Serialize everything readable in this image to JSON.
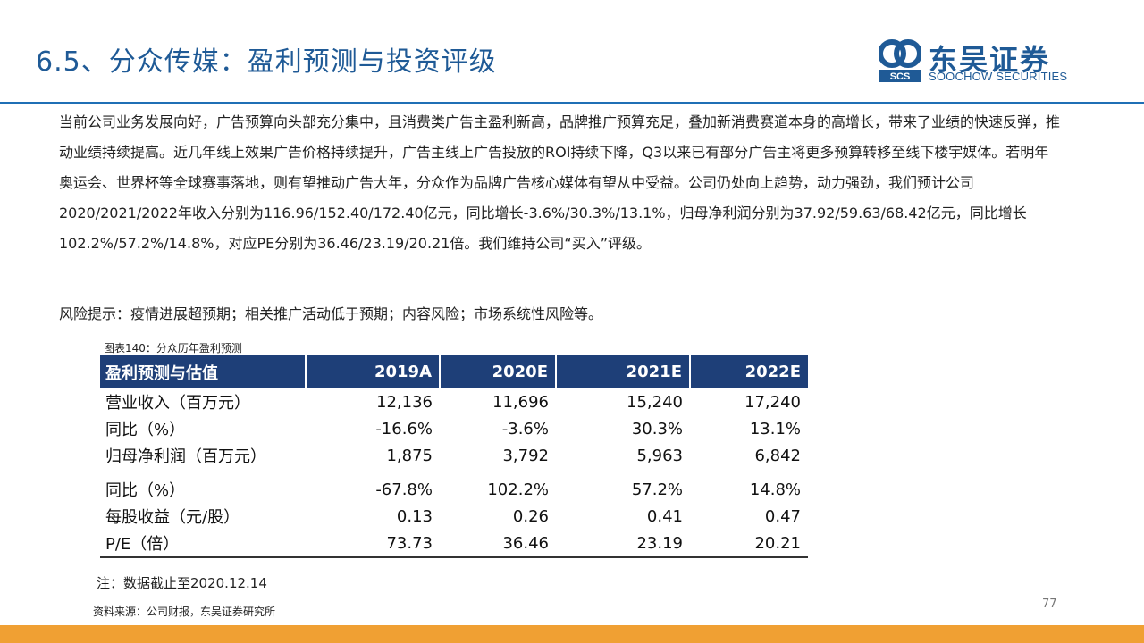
{
  "header": {
    "title": "6.5、分众传媒：盈利预测与投资评级",
    "logo_cn": "东吴证券",
    "logo_en": "SOOCHOW SECURITIES",
    "logo_mark": "SCS"
  },
  "body": {
    "paragraph": "当前公司业务发展向好，广告预算向头部充分集中，且消费类广告主盈利新高，品牌推广预算充足，叠加新消费赛道本身的高增长，带来了业绩的快速反弹，推动业绩持续提高。近几年线上效果广告价格持续提升，广告主线上广告投放的ROI持续下降，Q3以来已有部分广告主将更多预算转移至线下楼宇媒体。若明年奥运会、世界杯等全球赛事落地，则有望推动广告大年，分众作为品牌广告核心媒体有望从中受益。公司仍处向上趋势，动力强劲，我们预计公司2020/2021/2022年收入分别为116.96/152.40/172.40亿元，同比增长-3.6%/30.3%/13.1%，归母净利润分别为37.92/59.63/68.42亿元，同比增长102.2%/57.2%/14.8%，对应PE分别为36.46/23.19/20.21倍。我们维持公司“买入”评级。",
    "risk": "风险提示：疫情进展超预期；相关推广活动低于预期；内容风险；市场系统性风险等。"
  },
  "table": {
    "caption": "图表140：分众历年盈利预测",
    "headers": [
      "盈利预测与估值",
      "2019A",
      "2020E",
      "2021E",
      "2022E"
    ],
    "rows": [
      [
        "营业收入（百万元）",
        "12,136",
        "11,696",
        "15,240",
        "17,240"
      ],
      [
        "同比（%）",
        "-16.6%",
        "-3.6%",
        "30.3%",
        "13.1%"
      ],
      [
        "归母净利润（百万元）",
        "1,875",
        "3,792",
        "5,963",
        "6,842"
      ],
      [
        "同比（%）",
        "-67.8%",
        "102.2%",
        "57.2%",
        "14.8%"
      ],
      [
        "每股收益（元/股）",
        "0.13",
        "0.26",
        "0.41",
        "0.47"
      ],
      [
        "P/E（倍）",
        "73.73",
        "36.46",
        "23.19",
        "20.21"
      ]
    ]
  },
  "footer": {
    "note": "注：数据截止至2020.12.14",
    "source": "资料来源：公司财报，东吴证券研究所",
    "page_number": "77"
  },
  "colors": {
    "title": "#1f5a96",
    "header_rule": "#1f6fb5",
    "table_header": "#1e3f78",
    "footer_bar": "#f0a033"
  }
}
